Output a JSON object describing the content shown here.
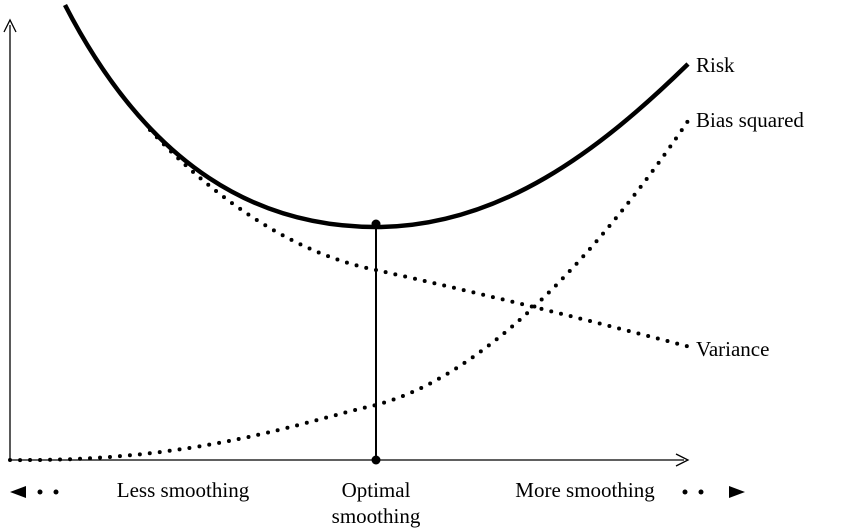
{
  "curves": {
    "risk": "Risk",
    "bias": "Bias squared",
    "variance": "Variance"
  },
  "axis": {
    "left": "Less smoothing",
    "middle": [
      "Optimal",
      "smoothing"
    ],
    "right": "More smoothing"
  }
}
